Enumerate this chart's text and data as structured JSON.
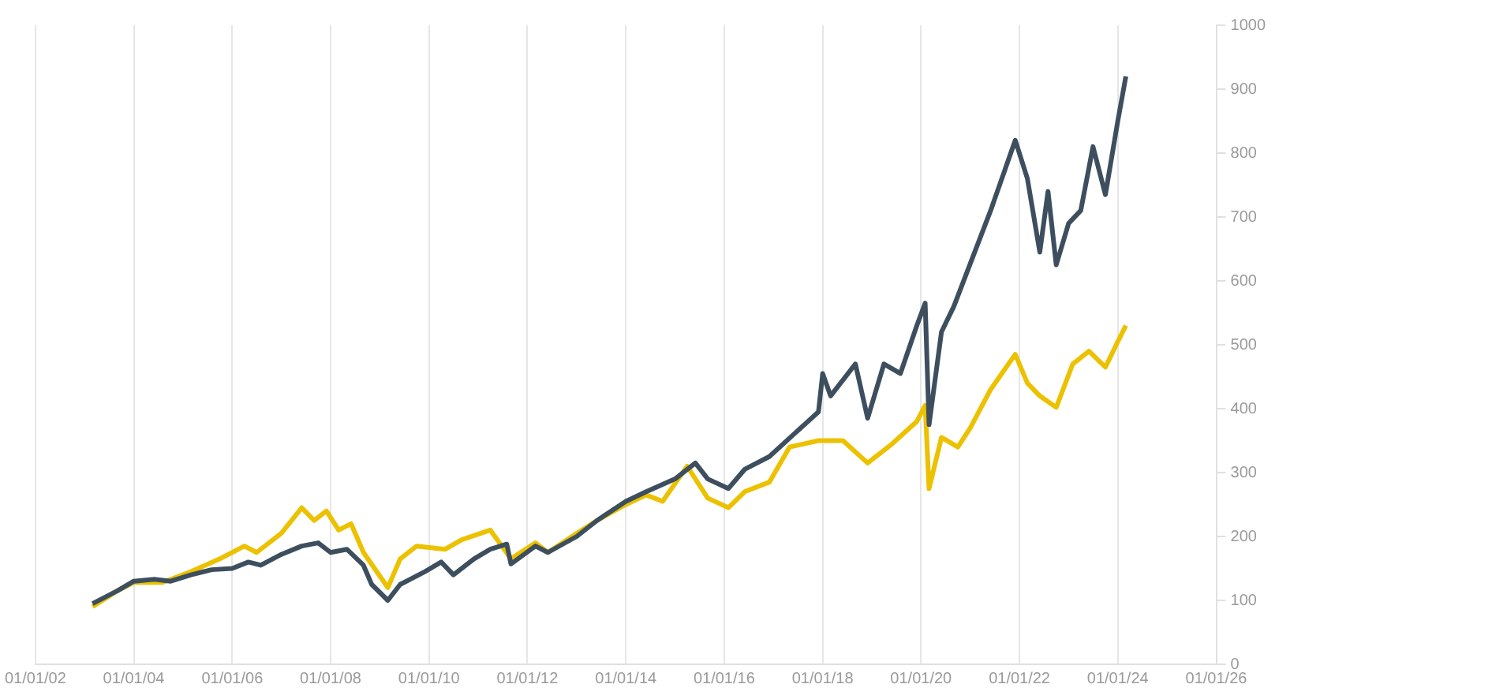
{
  "chart_data": {
    "type": "line",
    "marker": "none",
    "grid": "x",
    "xlim": [
      "2002-01-01",
      "2026-01-01"
    ],
    "xticks": [
      {
        "value": "2002-01-01",
        "label": "01/01/02"
      },
      {
        "value": "2004-01-01",
        "label": "01/01/04"
      },
      {
        "value": "2006-01-01",
        "label": "01/01/06"
      },
      {
        "value": "2008-01-01",
        "label": "01/01/08"
      },
      {
        "value": "2010-01-01",
        "label": "01/01/10"
      },
      {
        "value": "2012-01-01",
        "label": "01/01/12"
      },
      {
        "value": "2014-01-01",
        "label": "01/01/14"
      },
      {
        "value": "2016-01-01",
        "label": "01/01/16"
      },
      {
        "value": "2018-01-01",
        "label": "01/01/18"
      },
      {
        "value": "2020-01-01",
        "label": "01/01/20"
      },
      {
        "value": "2022-01-01",
        "label": "01/01/22"
      },
      {
        "value": "2024-01-01",
        "label": "01/01/24"
      },
      {
        "value": "2026-01-01",
        "label": "01/01/26"
      }
    ],
    "ylim": [
      0,
      1000
    ],
    "yticks": [
      0,
      100,
      200,
      300,
      400,
      500,
      600,
      700,
      800,
      900,
      1000
    ],
    "series": [
      {
        "color": "#3d4f5e",
        "x": [
          "2003-03",
          "2003-09",
          "2004-01",
          "2004-06",
          "2004-10",
          "2005-03",
          "2005-08",
          "2006-01",
          "2006-05",
          "2006-08",
          "2007-01",
          "2007-06",
          "2007-10",
          "2008-01",
          "2008-05",
          "2008-09",
          "2008-11",
          "2009-03",
          "2009-06",
          "2009-12",
          "2010-04",
          "2010-07",
          "2010-12",
          "2011-04",
          "2011-08",
          "2011-09",
          "2012-03",
          "2012-06",
          "2013-01",
          "2013-06",
          "2014-01",
          "2014-06",
          "2015-01",
          "2015-06",
          "2015-09",
          "2016-02",
          "2016-06",
          "2016-12",
          "2017-06",
          "2017-12",
          "2018-01",
          "2018-03",
          "2018-09",
          "2018-12",
          "2019-04",
          "2019-08",
          "2019-12",
          "2020-02",
          "2020-03",
          "2020-06",
          "2020-09",
          "2020-12",
          "2021-06",
          "2021-12",
          "2022-03",
          "2022-06",
          "2022-08",
          "2022-10",
          "2023-01",
          "2023-04",
          "2023-07",
          "2023-10",
          "2024-01",
          "2024-03"
        ],
        "values": [
          95,
          115,
          130,
          133,
          130,
          140,
          148,
          150,
          160,
          155,
          172,
          185,
          190,
          175,
          180,
          155,
          125,
          100,
          125,
          145,
          160,
          140,
          165,
          180,
          188,
          157,
          185,
          175,
          200,
          225,
          255,
          270,
          290,
          315,
          290,
          275,
          305,
          325,
          360,
          395,
          455,
          420,
          470,
          385,
          470,
          455,
          530,
          565,
          375,
          520,
          560,
          610,
          710,
          820,
          760,
          645,
          740,
          625,
          690,
          710,
          810,
          735,
          850,
          920
        ]
      },
      {
        "color": "#ecc100",
        "x": [
          "2003-03",
          "2003-09",
          "2004-01",
          "2004-08",
          "2005-03",
          "2005-10",
          "2006-04",
          "2006-07",
          "2007-01",
          "2007-06",
          "2007-09",
          "2007-12",
          "2008-03",
          "2008-06",
          "2008-09",
          "2009-03",
          "2009-06",
          "2009-10",
          "2010-05",
          "2010-09",
          "2011-04",
          "2011-09",
          "2012-03",
          "2012-06",
          "2013-01",
          "2013-06",
          "2014-01",
          "2014-06",
          "2014-10",
          "2015-04",
          "2015-09",
          "2016-02",
          "2016-06",
          "2016-12",
          "2017-05",
          "2017-12",
          "2018-06",
          "2018-12",
          "2019-06",
          "2019-12",
          "2020-02",
          "2020-03",
          "2020-06",
          "2020-10",
          "2021-01",
          "2021-06",
          "2021-12",
          "2022-03",
          "2022-06",
          "2022-10",
          "2023-02",
          "2023-06",
          "2023-10",
          "2024-01",
          "2024-03"
        ],
        "values": [
          90,
          115,
          128,
          128,
          145,
          165,
          185,
          175,
          205,
          245,
          225,
          240,
          210,
          220,
          175,
          120,
          165,
          185,
          180,
          195,
          210,
          165,
          190,
          175,
          205,
          225,
          250,
          265,
          255,
          310,
          260,
          245,
          270,
          285,
          340,
          350,
          350,
          315,
          345,
          380,
          405,
          275,
          355,
          340,
          370,
          430,
          485,
          440,
          420,
          402,
          470,
          490,
          465,
          505,
          530
        ]
      }
    ]
  }
}
